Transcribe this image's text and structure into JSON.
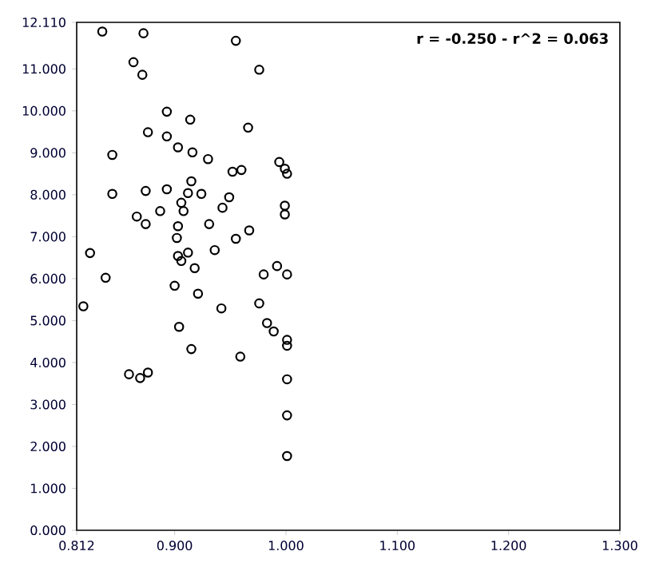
{
  "chart_data": {
    "type": "scatter",
    "color": "#000000",
    "marker": "circle",
    "grid": false,
    "xlim": [
      0.812,
      1.3
    ],
    "ylim": [
      0,
      12.11
    ],
    "xticks": [
      {
        "value": 0.812,
        "label": "0.812"
      },
      {
        "value": 0.9,
        "label": "0.900"
      },
      {
        "value": 1.0,
        "label": "1.000"
      },
      {
        "value": 1.1,
        "label": "1.100"
      },
      {
        "value": 1.2,
        "label": "1.200"
      },
      {
        "value": 1.3,
        "label": "1.300"
      }
    ],
    "yticks": [
      {
        "value": 0,
        "label": "0.000"
      },
      {
        "value": 1,
        "label": "1.000"
      },
      {
        "value": 2,
        "label": "2.000"
      },
      {
        "value": 3,
        "label": "3.000"
      },
      {
        "value": 4,
        "label": "4.000"
      },
      {
        "value": 5,
        "label": "5.000"
      },
      {
        "value": 6,
        "label": "6.000"
      },
      {
        "value": 7,
        "label": "7.000"
      },
      {
        "value": 8,
        "label": "8.000"
      },
      {
        "value": 9,
        "label": "9.000"
      },
      {
        "value": 10,
        "label": "10.000"
      },
      {
        "value": 11,
        "label": "11.000"
      },
      {
        "value": 12.11,
        "label": "12.110"
      }
    ],
    "annotations": [
      "r = -0.250 - r^2 = 0.063"
    ],
    "x": [
      0.835,
      0.872,
      0.955,
      0.863,
      0.871,
      0.976,
      0.893,
      0.914,
      0.966,
      0.876,
      0.893,
      0.903,
      0.916,
      0.844,
      0.93,
      0.994,
      0.952,
      0.96,
      0.999,
      1.001,
      0.915,
      0.844,
      0.874,
      0.893,
      0.912,
      0.924,
      0.949,
      0.906,
      0.943,
      0.999,
      0.999,
      0.866,
      0.887,
      0.908,
      0.874,
      0.903,
      0.931,
      0.967,
      0.955,
      0.902,
      0.824,
      0.903,
      0.912,
      0.936,
      0.906,
      0.918,
      0.838,
      0.818,
      0.9,
      0.921,
      0.942,
      0.904,
      0.915,
      0.959,
      0.976,
      0.98,
      0.992,
      1.001,
      0.983,
      0.989,
      1.001,
      1.001,
      1.001,
      1.001,
      1.001,
      0.859,
      0.869,
      0.876
    ],
    "values": [
      11.89,
      11.85,
      11.67,
      11.16,
      10.86,
      10.98,
      9.98,
      9.79,
      9.6,
      9.49,
      9.39,
      9.13,
      9.01,
      8.95,
      8.85,
      8.78,
      8.55,
      8.59,
      8.62,
      8.5,
      8.32,
      8.02,
      8.09,
      8.13,
      8.04,
      8.02,
      7.94,
      7.81,
      7.69,
      7.74,
      7.53,
      7.48,
      7.61,
      7.61,
      7.3,
      7.25,
      7.3,
      7.15,
      6.95,
      6.97,
      6.61,
      6.54,
      6.62,
      6.68,
      6.42,
      6.25,
      6.02,
      5.34,
      5.83,
      5.64,
      5.29,
      4.85,
      4.32,
      4.14,
      5.41,
      6.1,
      6.3,
      6.1,
      4.94,
      4.74,
      4.54,
      4.4,
      3.6,
      2.74,
      1.77,
      3.72,
      3.63,
      3.76
    ]
  }
}
